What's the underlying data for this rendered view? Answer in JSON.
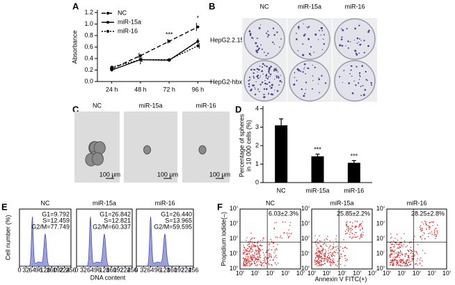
{
  "panel_labels": [
    "A",
    "B",
    "C",
    "D",
    "E",
    "F"
  ],
  "chart_data": [
    {
      "type": "line",
      "ylabel": "Absorbance",
      "categories": [
        "24 h",
        "48 h",
        "72 h",
        "96 h"
      ],
      "ylim": [
        0,
        1.2
      ],
      "yticks": [
        {
          "value": 0,
          "label": "0.0"
        },
        0.2,
        0.4,
        0.6,
        0.8,
        {
          "value": 1,
          "label": "1.0"
        },
        {
          "value": 1.2,
          "label": "1.2"
        }
      ],
      "legend": "top-left",
      "series": [
        {
          "name": "NC",
          "color": "#000000",
          "dash": "6,3",
          "values": [
            0.22,
            0.45,
            0.7,
            0.95
          ],
          "errors": [
            0.02,
            0.05,
            0.04,
            0.07
          ]
        },
        {
          "name": "miR-15a",
          "color": "#000000",
          "dash": "none",
          "values": [
            0.2,
            0.38,
            0.37,
            0.7
          ],
          "errors": [
            0.02,
            0.08,
            0.02,
            0.05
          ]
        },
        {
          "name": "miR-16",
          "color": "#000000",
          "dash": "2,2",
          "values": [
            0.25,
            0.38,
            0.38,
            0.62
          ],
          "errors": [
            0.02,
            0.04,
            0.02,
            0.05
          ]
        }
      ],
      "annotations": [
        null,
        null,
        "***",
        "*"
      ]
    },
    {
      "type": "bar",
      "ylabel": [
        "Percentage of spheres",
        "in 10 000 cells (%)"
      ],
      "categories": [
        "NC",
        "miR-15a",
        "miR-16"
      ],
      "values": [
        3.1,
        1.42,
        1.07
      ],
      "errors": [
        0.35,
        0.12,
        0.12
      ],
      "color": "#000000",
      "ylim": [
        0,
        4
      ],
      "yticks": [
        0,
        1,
        2,
        3,
        4
      ],
      "annotations": [
        null,
        "***",
        "***"
      ]
    }
  ],
  "panel_b": {
    "columns": [
      "NC",
      "miR-15a",
      "miR-16"
    ],
    "rows": [
      "HepG2.2.15",
      "HepG2-hbx"
    ]
  },
  "panel_c": {
    "columns": [
      "NC",
      "miR-15a",
      "miR-16"
    ],
    "scale_label": "100 μm"
  },
  "panel_e": {
    "ylabel": "Cell number (%)",
    "xlabel": "DNA content",
    "xlim": [
      0,
      256
    ],
    "xticks": [
      0,
      32,
      64,
      96,
      128,
      160,
      192,
      224,
      256
    ],
    "plots": [
      {
        "title": "NC",
        "stats": [
          "G1=9.792",
          "S=12.459",
          "G2/M=77.749"
        ]
      },
      {
        "title": "miR-15a",
        "stats": [
          "G1=26.842",
          "S=12.821",
          "G2/M=60.337"
        ]
      },
      {
        "title": "miR-16",
        "stats": [
          "G1=26.440",
          "S=13.965",
          "G2/M=59.595"
        ]
      }
    ]
  },
  "panel_f": {
    "ylabel": "Propidium iodide(–)",
    "xlabel": "Annexin V FITC(+)",
    "tick_base": "10",
    "tick_exponents": [
      "0",
      "1",
      "2",
      "3",
      "4"
    ],
    "plots": [
      {
        "title": "NC",
        "percent": "6.03±2.3%"
      },
      {
        "title": "miR-15a",
        "percent": "25.85±2.2%"
      },
      {
        "title": "miR-16",
        "percent": "28.25±2.8%"
      }
    ]
  }
}
